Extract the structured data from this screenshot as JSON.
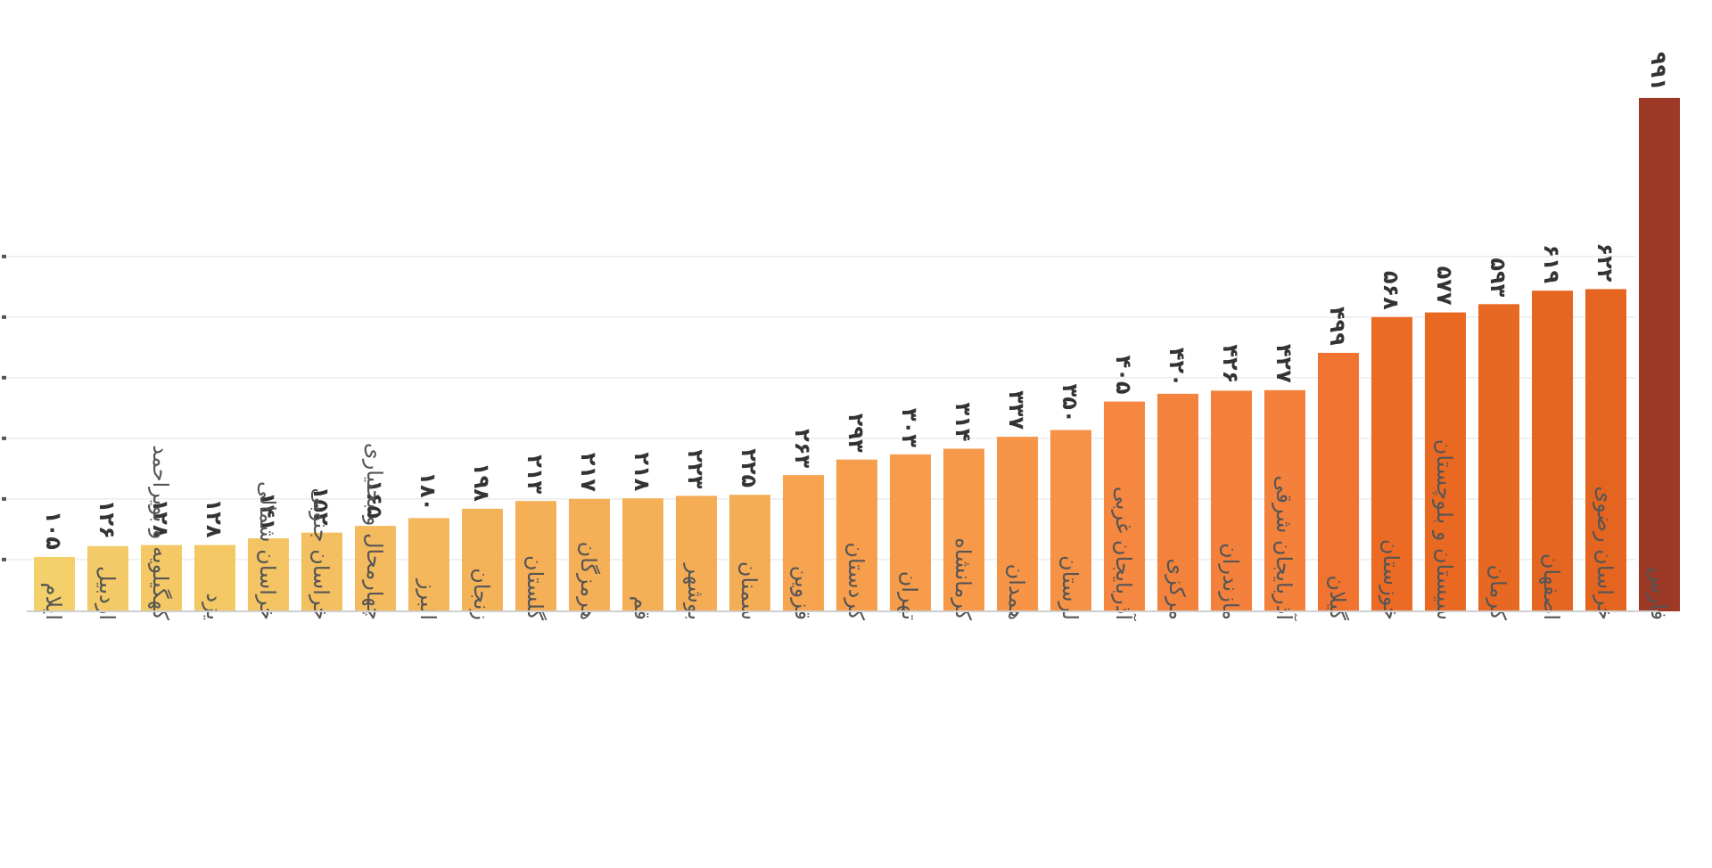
{
  "chart_data": {
    "type": "bar",
    "categories": [
      "ایلام",
      "اردبیل",
      "کهگیلویه و بویراحمد",
      "یزد",
      "خراسان شمالی",
      "خراسان جنوبی",
      "چهارمحال و بختیاری",
      "البرز",
      "زنجان",
      "گلستان",
      "هرمزگان",
      "قم",
      "بوشهر",
      "سمنان",
      "قزوین",
      "کردستان",
      "تهران",
      "کرمانشاه",
      "همدان",
      "لرستان",
      "آذربایجان غربی",
      "مرکزی",
      "مازندران",
      "آذربایجان شرقی",
      "گیلان",
      "خوزستان",
      "سیستان و بلوچستان",
      "کرمان",
      "اصفهان",
      "خراسان رضوی",
      "فارس"
    ],
    "values": [
      105,
      126,
      128,
      128,
      141,
      152,
      165,
      180,
      198,
      213,
      217,
      218,
      223,
      225,
      263,
      293,
      303,
      314,
      337,
      350,
      405,
      420,
      426,
      427,
      499,
      568,
      577,
      593,
      619,
      622,
      991
    ],
    "value_labels": [
      "۱۰۵",
      "۱۲۶",
      "۱۲۸",
      "۱۲۸",
      "۱۴۱",
      "۱۵۲",
      "۱۶۵",
      "۱۸۰",
      "۱۹۸",
      "۲۱۳",
      "۲۱۷",
      "۲۱۸",
      "۲۲۳",
      "۲۲۵",
      "۲۶۳",
      "۲۹۳",
      "۳۰۳",
      "۳۱۴",
      "۳۳۷",
      "۳۵۰",
      "۴۰۵",
      "۴۲۰",
      "۴۲۶",
      "۴۲۷",
      "۴۹۹",
      "۵۶۸",
      "۵۷۷",
      "۵۹۳",
      "۶۱۹",
      "۶۲۲",
      "۹۹۱"
    ],
    "colors": [
      "#f3d06a",
      "#f3ca67",
      "#f3c865",
      "#f3c865",
      "#f4c363",
      "#f4bf60",
      "#f4bb5e",
      "#f5b75b",
      "#f5b359",
      "#f5b057",
      "#f5af56",
      "#f5af56",
      "#f5ad55",
      "#f5ad55",
      "#f6a450",
      "#f69e4c",
      "#f69c4b",
      "#f69a4a",
      "#f69547",
      "#f69245",
      "#f58740",
      "#f3823c",
      "#f3813b",
      "#f3813b",
      "#f0742f",
      "#eb6a24",
      "#e96923",
      "#e76822",
      "#e56621",
      "#e36520",
      "#9c3a27"
    ],
    "ylim": [
      0,
      1100
    ],
    "grid": true,
    "title": "",
    "xlabel": "",
    "ylabel": ""
  }
}
